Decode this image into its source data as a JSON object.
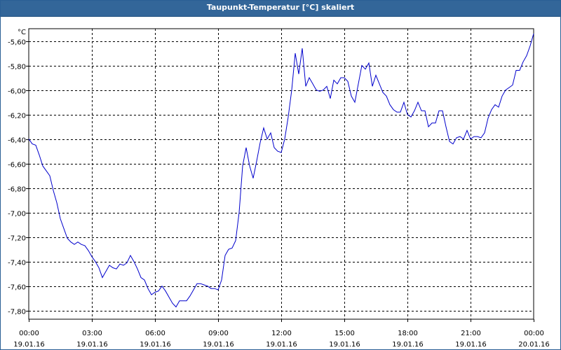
{
  "window": {
    "title": "Taupunkt-Temperatur [°C] skaliert"
  },
  "colors": {
    "titlebar": "#336699",
    "line": "#0000cc",
    "grid": "#000000",
    "axis": "#000000"
  },
  "chart_data": {
    "type": "line",
    "title": "Taupunkt-Temperatur [°C] skaliert",
    "ylabel": "°C",
    "xlabel": "",
    "ylim": [
      -7.87,
      -5.5
    ],
    "y_ticks": [
      -5.6,
      -5.8,
      -6.0,
      -6.2,
      -6.4,
      -6.6,
      -6.8,
      -7.0,
      -7.2,
      -7.4,
      -7.6,
      -7.8
    ],
    "y_tick_labels": [
      "-5,60",
      "-5,80",
      "-6,00",
      "-6,20",
      "-6,40",
      "-6,60",
      "-6,80",
      "-7,00",
      "-7,20",
      "-7,40",
      "-7,60",
      "-7,80"
    ],
    "x_range": [
      "19.01.16 00:00",
      "20.01.16 00:00"
    ],
    "x_ticks": [
      {
        "time": "00:00",
        "date": "19.01.16"
      },
      {
        "time": "03:00",
        "date": "19.01.16"
      },
      {
        "time": "06:00",
        "date": "19.01.16"
      },
      {
        "time": "09:00",
        "date": "19.01.16"
      },
      {
        "time": "12:00",
        "date": "19.01.16"
      },
      {
        "time": "15:00",
        "date": "19.01.16"
      },
      {
        "time": "18:00",
        "date": "19.01.16"
      },
      {
        "time": "21:00",
        "date": "19.01.16"
      },
      {
        "time": "00:00",
        "date": "20.01.16"
      }
    ],
    "grid": true,
    "series": [
      {
        "x": [
          "19.01.16 00:00",
          "19.01.16 00:10",
          "19.01.16 00:20",
          "19.01.16 00:30",
          "19.01.16 00:40",
          "19.01.16 00:50",
          "19.01.16 01:00",
          "19.01.16 01:10",
          "19.01.16 01:20",
          "19.01.16 01:30",
          "19.01.16 01:40",
          "19.01.16 01:50",
          "19.01.16 02:00",
          "19.01.16 02:10",
          "19.01.16 02:20",
          "19.01.16 02:30",
          "19.01.16 02:40",
          "19.01.16 02:50",
          "19.01.16 03:00",
          "19.01.16 03:10",
          "19.01.16 03:20",
          "19.01.16 03:30",
          "19.01.16 03:40",
          "19.01.16 03:50",
          "19.01.16 04:00",
          "19.01.16 04:10",
          "19.01.16 04:20",
          "19.01.16 04:30",
          "19.01.16 04:40",
          "19.01.16 04:50",
          "19.01.16 05:00",
          "19.01.16 05:10",
          "19.01.16 05:20",
          "19.01.16 05:30",
          "19.01.16 05:40",
          "19.01.16 05:50",
          "19.01.16 06:00",
          "19.01.16 06:10",
          "19.01.16 06:20",
          "19.01.16 06:30",
          "19.01.16 06:40",
          "19.01.16 06:50",
          "19.01.16 07:00",
          "19.01.16 07:10",
          "19.01.16 07:20",
          "19.01.16 07:30",
          "19.01.16 07:40",
          "19.01.16 07:50",
          "19.01.16 08:00",
          "19.01.16 08:10",
          "19.01.16 08:20",
          "19.01.16 08:30",
          "19.01.16 08:40",
          "19.01.16 08:50",
          "19.01.16 09:00",
          "19.01.16 09:10",
          "19.01.16 09:20",
          "19.01.16 09:30",
          "19.01.16 09:40",
          "19.01.16 09:50",
          "19.01.16 10:00",
          "19.01.16 10:10",
          "19.01.16 10:20",
          "19.01.16 10:30",
          "19.01.16 10:40",
          "19.01.16 10:50",
          "19.01.16 11:00",
          "19.01.16 11:10",
          "19.01.16 11:20",
          "19.01.16 11:30",
          "19.01.16 11:40",
          "19.01.16 11:50",
          "19.01.16 12:00",
          "19.01.16 12:10",
          "19.01.16 12:20",
          "19.01.16 12:30",
          "19.01.16 12:40",
          "19.01.16 12:50",
          "19.01.16 13:00",
          "19.01.16 13:10",
          "19.01.16 13:20",
          "19.01.16 13:30",
          "19.01.16 13:40",
          "19.01.16 13:50",
          "19.01.16 14:00",
          "19.01.16 14:10",
          "19.01.16 14:20",
          "19.01.16 14:30",
          "19.01.16 14:40",
          "19.01.16 14:50",
          "19.01.16 15:00",
          "19.01.16 15:10",
          "19.01.16 15:20",
          "19.01.16 15:30",
          "19.01.16 15:40",
          "19.01.16 15:50",
          "19.01.16 16:00",
          "19.01.16 16:10",
          "19.01.16 16:20",
          "19.01.16 16:30",
          "19.01.16 16:40",
          "19.01.16 16:50",
          "19.01.16 17:00",
          "19.01.16 17:10",
          "19.01.16 17:20",
          "19.01.16 17:30",
          "19.01.16 17:40",
          "19.01.16 17:50",
          "19.01.16 18:00",
          "19.01.16 18:10",
          "19.01.16 18:20",
          "19.01.16 18:30",
          "19.01.16 18:40",
          "19.01.16 18:50",
          "19.01.16 19:00",
          "19.01.16 19:10",
          "19.01.16 19:20",
          "19.01.16 19:30",
          "19.01.16 19:40",
          "19.01.16 19:50",
          "19.01.16 20:00",
          "19.01.16 20:10",
          "19.01.16 20:20",
          "19.01.16 20:30",
          "19.01.16 20:40",
          "19.01.16 20:50",
          "19.01.16 21:00",
          "19.01.16 21:10",
          "19.01.16 21:20",
          "19.01.16 21:30",
          "19.01.16 21:40",
          "19.01.16 21:50",
          "19.01.16 22:00",
          "19.01.16 22:10",
          "19.01.16 22:20",
          "19.01.16 22:30",
          "19.01.16 22:40",
          "19.01.16 22:50",
          "19.01.16 23:00",
          "19.01.16 23:10",
          "19.01.16 23:20",
          "19.01.16 23:30",
          "19.01.16 23:40",
          "19.01.16 23:50",
          "20.01.16 00:00"
        ],
        "y": [
          -6.4,
          -6.44,
          -6.45,
          -6.53,
          -6.62,
          -6.66,
          -6.7,
          -6.82,
          -6.92,
          -7.05,
          -7.13,
          -7.21,
          -7.24,
          -7.26,
          -7.24,
          -7.26,
          -7.27,
          -7.31,
          -7.36,
          -7.4,
          -7.45,
          -7.53,
          -7.48,
          -7.43,
          -7.45,
          -7.46,
          -7.42,
          -7.43,
          -7.41,
          -7.35,
          -7.4,
          -7.46,
          -7.53,
          -7.55,
          -7.62,
          -7.67,
          -7.65,
          -7.64,
          -7.6,
          -7.64,
          -7.69,
          -7.74,
          -7.77,
          -7.72,
          -7.72,
          -7.72,
          -7.68,
          -7.63,
          -7.58,
          -7.58,
          -7.59,
          -7.6,
          -7.62,
          -7.62,
          -7.63,
          -7.55,
          -7.35,
          -7.3,
          -7.29,
          -7.23,
          -7.0,
          -6.62,
          -6.47,
          -6.62,
          -6.72,
          -6.58,
          -6.43,
          -6.31,
          -6.4,
          -6.35,
          -6.47,
          -6.5,
          -6.51,
          -6.4,
          -6.22,
          -6.0,
          -5.7,
          -5.87,
          -5.66,
          -5.97,
          -5.9,
          -5.95,
          -6.0,
          -6.01,
          -6.0,
          -5.97,
          -6.07,
          -5.92,
          -5.95,
          -5.9,
          -5.9,
          -5.93,
          -6.05,
          -6.1,
          -5.95,
          -5.8,
          -5.83,
          -5.78,
          -5.97,
          -5.88,
          -5.95,
          -6.02,
          -6.05,
          -6.12,
          -6.16,
          -6.18,
          -6.18,
          -6.1,
          -6.2,
          -6.22,
          -6.17,
          -6.1,
          -6.17,
          -6.17,
          -6.3,
          -6.27,
          -6.27,
          -6.17,
          -6.17,
          -6.3,
          -6.42,
          -6.44,
          -6.39,
          -6.38,
          -6.4,
          -6.33,
          -6.4,
          -6.38,
          -6.38,
          -6.39,
          -6.35,
          -6.23,
          -6.16,
          -6.12,
          -6.14,
          -6.05,
          -6.0,
          -5.98,
          -5.96,
          -5.84,
          -5.84,
          -5.77,
          -5.72,
          -5.64,
          -5.54
        ]
      }
    ]
  }
}
